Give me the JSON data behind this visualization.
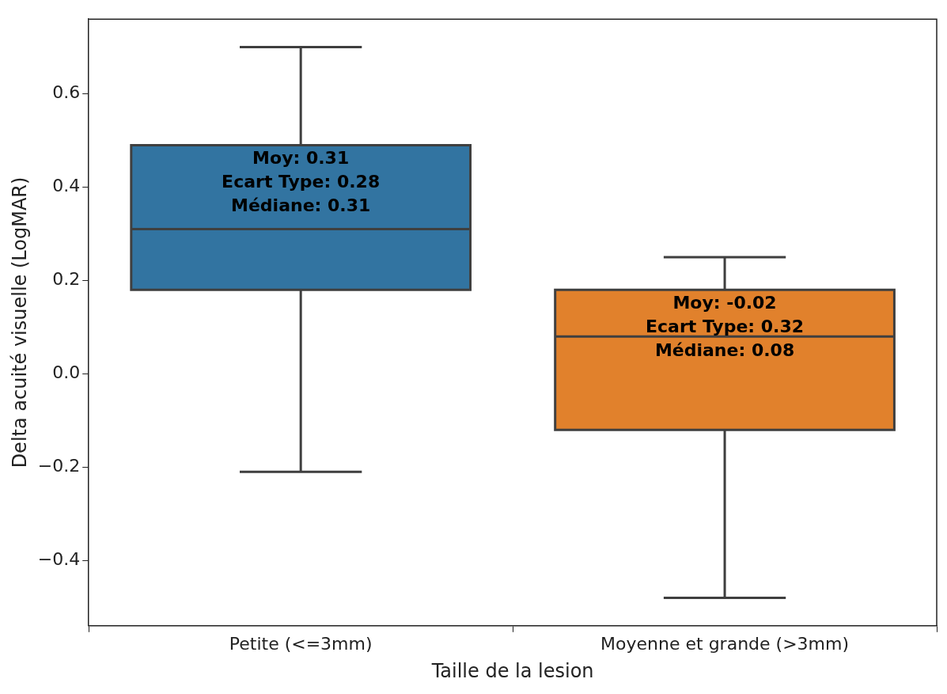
{
  "chart_data": {
    "type": "box",
    "xlabel": "Taille de la lesion",
    "ylabel": "Delta acuité visuelle (LogMAR)",
    "categories": [
      "Petite (<=3mm)",
      "Moyenne et grande (>3mm)"
    ],
    "colors": [
      "#3274a1",
      "#e1812c"
    ],
    "boxes": [
      {
        "low": -0.21,
        "q1": 0.18,
        "median": 0.31,
        "q3": 0.49,
        "high": 0.7
      },
      {
        "low": -0.48,
        "q1": -0.12,
        "median": 0.08,
        "q3": 0.18,
        "high": 0.25
      }
    ],
    "ylim": [
      -0.54,
      0.76
    ],
    "yticks": [
      {
        "value": -0.4,
        "label": "−0.4"
      },
      {
        "value": -0.2,
        "label": "−0.2"
      },
      {
        "value": 0,
        "label": "0.0"
      },
      {
        "value": 0.2,
        "label": "0.2"
      },
      {
        "value": 0.4,
        "label": "0.4"
      },
      {
        "value": 0.6,
        "label": "0.6"
      }
    ],
    "grid": false,
    "legend": false,
    "annotations": [
      "Moy: 0.31\nEcart Type: 0.28\nMédiane: 0.31",
      "Moy: -0.02\nEcart Type: 0.32\nMédiane: 0.08"
    ]
  }
}
